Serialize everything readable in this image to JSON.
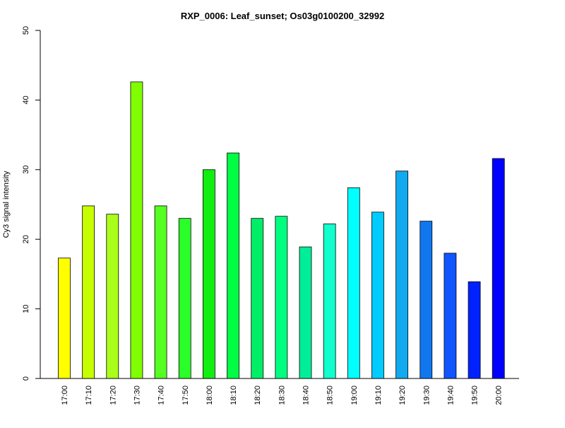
{
  "chart_data": {
    "type": "bar",
    "title": "RXP_0006: Leaf_sunset; Os03g0100200_32992",
    "xlabel": "",
    "ylabel": "Cy3 signal intensity",
    "ylim": [
      0,
      50
    ],
    "yticks": [
      0,
      10,
      20,
      30,
      40,
      50
    ],
    "grid": false,
    "legend": "none",
    "categories": [
      "17:00",
      "17:10",
      "17:20",
      "17:30",
      "17:40",
      "17:50",
      "18:00",
      "18:10",
      "18:20",
      "18:30",
      "18:40",
      "18:50",
      "19:00",
      "19:10",
      "19:20",
      "19:30",
      "19:40",
      "19:50",
      "20:00"
    ],
    "values": [
      17.3,
      24.8,
      23.6,
      42.6,
      24.8,
      23.0,
      30.0,
      32.4,
      23.0,
      23.3,
      18.9,
      22.2,
      27.4,
      23.9,
      29.8,
      22.6,
      18.0,
      13.9,
      31.6
    ],
    "colors": [
      "#ffff00",
      "#c8ff00",
      "#aaff1a",
      "#80ff00",
      "#55ff22",
      "#2aff2a",
      "#11ee11",
      "#00ff44",
      "#00ee66",
      "#00ff80",
      "#00ee99",
      "#11ffcc",
      "#00ffff",
      "#00ccff",
      "#11aaee",
      "#1177ee",
      "#1155ff",
      "#0022ff",
      "#0000ff"
    ]
  }
}
